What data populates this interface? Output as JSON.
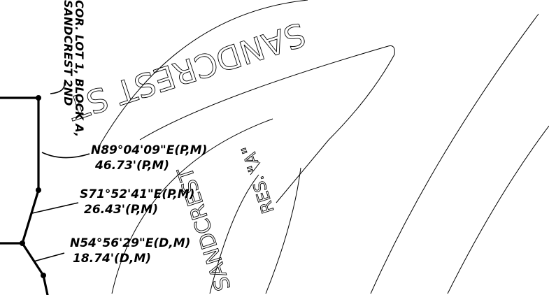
{
  "labels": {
    "corner_note_line1": "COR. LOT 1, BLOCK A,",
    "corner_note_line2": "SANDCREST 2ND",
    "street_name": "SANDCREST ST",
    "reserve_line1": "RES. \"A\"",
    "reserve_line2": "SANDCREST"
  },
  "calls": [
    {
      "bearing": "N89°04'09\"E(P,M)",
      "distance": "46.73'(P,M)"
    },
    {
      "bearing": "S71°52'41\"E(P,M)",
      "distance": "26.43'(P,M)"
    },
    {
      "bearing": "N54°56'29\"E(D,M)",
      "distance": "18.74'(D,M)"
    }
  ],
  "colors": {
    "background": "#ffffff",
    "linework": "#000000"
  }
}
